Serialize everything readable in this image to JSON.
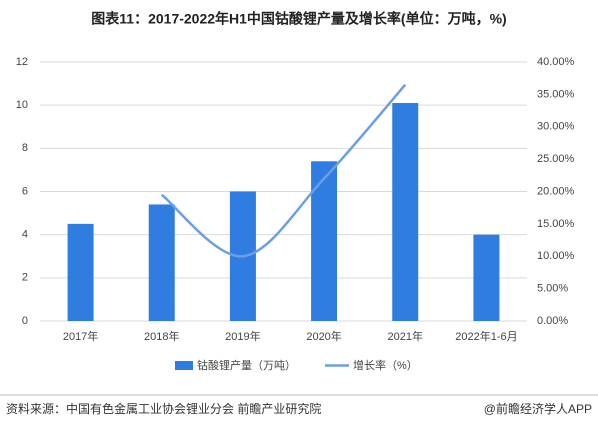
{
  "chart_data": {
    "type": "bar-line",
    "title": "图表11：2017-2022年H1中国钴酸锂产量及增长率(单位：万吨，%)",
    "categories": [
      "2017年",
      "2018年",
      "2019年",
      "2020年",
      "2021年",
      "2022年1-6月"
    ],
    "series": [
      {
        "name": "钴酸锂产量（万吨）",
        "color": "#2f7de1",
        "type": "bar",
        "values": [
          4.5,
          5.4,
          6.0,
          7.4,
          10.1,
          4.0
        ]
      },
      {
        "name": "增长率（%）",
        "color": "#6a9fe0",
        "type": "line",
        "axis": "y2",
        "values": [
          null,
          19.5,
          10.0,
          22.0,
          36.5,
          null
        ]
      }
    ],
    "ylim": [
      0,
      12
    ],
    "yticks": [
      0,
      2,
      4,
      6,
      8,
      10,
      12
    ],
    "y2lim": [
      0,
      40
    ],
    "y2ticks": [
      {
        "value": 0,
        "label": "0.00%"
      },
      {
        "value": 5,
        "label": "5.00%"
      },
      {
        "value": 10,
        "label": "10.00%"
      },
      {
        "value": 15,
        "label": "15.00%"
      },
      {
        "value": 20,
        "label": "20.00%"
      },
      {
        "value": 25,
        "label": "25.00%"
      },
      {
        "value": 30,
        "label": "30.00%"
      },
      {
        "value": 35,
        "label": "35.00%"
      },
      {
        "value": 40,
        "label": "40.00%"
      }
    ],
    "grid": true,
    "source": "资料来源：中国有色金属工业协会锂业分会 前瞻产业研究院",
    "credit": "@前瞻经济学人APP"
  }
}
